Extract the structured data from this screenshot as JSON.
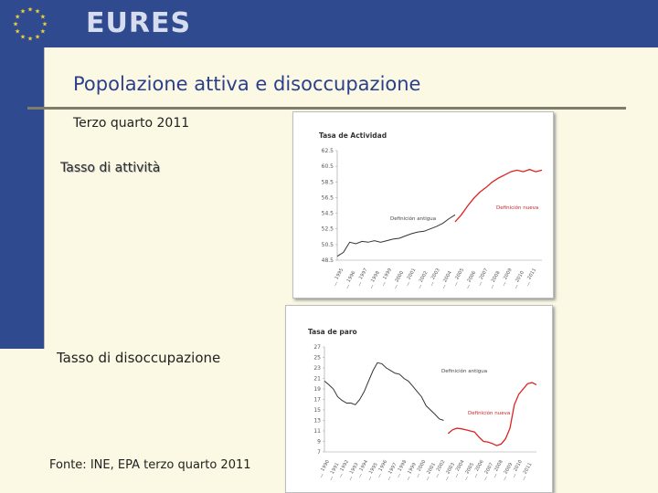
{
  "header": {
    "brand": "EURES",
    "flag_icon": "eu-flag-icon",
    "colors": {
      "bar": "#2f4a8f",
      "star": "#f2d43a",
      "title": "#2b3f8c"
    }
  },
  "slide": {
    "title": "Popolazione attiva e disoccupazione",
    "subtitle": "Terzo quarto 2011",
    "label_activity": "Tasso di attività",
    "label_unemployment": "Tasso di disoccupazione",
    "source": "Fonte: INE, EPA terzo quarto 2011"
  },
  "chart_data": [
    {
      "type": "line",
      "title": "Tasa de Actividad",
      "ylim": [
        48.5,
        62.5
      ],
      "yticks": [
        "62.5",
        "60.5",
        "58.5",
        "56.5",
        "54.5",
        "52.5",
        "50.5",
        "48.5"
      ],
      "x_labels": [
        "1995",
        "1996",
        "1997",
        "1998",
        "1999",
        "2000",
        "2001",
        "2002",
        "2003",
        "2004",
        "2005",
        "2006",
        "2007",
        "2008",
        "2009",
        "2010",
        "2011"
      ],
      "annotations": [
        "Definición antigua",
        "Definición nueva"
      ],
      "colors": {
        "old": "#333333",
        "new": "#dd2222"
      },
      "series": [
        {
          "definition": "old",
          "x": [
            1995.0,
            1995.5,
            1996.0,
            1996.5,
            1997.0,
            1997.5,
            1998.0,
            1998.5,
            1999.0,
            1999.5,
            2000.0,
            2000.5,
            2001.0,
            2001.5,
            2002.0,
            2002.5,
            2003.0,
            2003.5,
            2004.0,
            2004.5
          ],
          "values": [
            49.0,
            49.5,
            50.8,
            50.6,
            50.9,
            50.8,
            51.0,
            50.8,
            51.0,
            51.2,
            51.3,
            51.6,
            51.9,
            52.1,
            52.2,
            52.5,
            52.8,
            53.2,
            53.8,
            54.3
          ]
        },
        {
          "definition": "new",
          "x": [
            2004.5,
            2005.0,
            2005.5,
            2006.0,
            2006.5,
            2007.0,
            2007.5,
            2008.0,
            2008.5,
            2009.0,
            2009.5,
            2010.0,
            2010.5,
            2011.0,
            2011.5
          ],
          "values": [
            53.4,
            54.3,
            55.4,
            56.4,
            57.2,
            57.8,
            58.5,
            59.0,
            59.4,
            59.8,
            60.0,
            59.8,
            60.1,
            59.8,
            60.0
          ]
        }
      ]
    },
    {
      "type": "line",
      "title": "Tasa de paro",
      "ylim": [
        7,
        27
      ],
      "yticks": [
        "27",
        "25",
        "23",
        "21",
        "19",
        "17",
        "15",
        "13",
        "11",
        "9",
        "7"
      ],
      "x_labels": [
        "1990",
        "1991",
        "1992",
        "1993",
        "1994",
        "1995",
        "1996",
        "1997",
        "1998",
        "1999",
        "2000",
        "2001",
        "2002",
        "2003",
        "2004",
        "2005",
        "2006",
        "2007",
        "2008",
        "2009",
        "2010",
        "2011"
      ],
      "annotations": [
        "Definición antigua",
        "Definición nueva"
      ],
      "colors": {
        "old": "#333333",
        "new": "#dd2222"
      },
      "series": [
        {
          "definition": "old",
          "x": [
            1987.5,
            1988.0,
            1988.5,
            1989.0,
            1989.5,
            1990.0,
            1990.5,
            1991.0,
            1991.5,
            1992.0,
            1992.5,
            1993.0,
            1993.5,
            1994.0,
            1994.5,
            1995.0,
            1995.5,
            1996.0,
            1996.5,
            1997.0,
            1997.5,
            1998.0,
            1998.5,
            1999.0,
            1999.5,
            2000.0,
            2000.5,
            2001.0
          ],
          "values": [
            20.5,
            19.8,
            19.0,
            17.5,
            16.8,
            16.3,
            16.3,
            16.0,
            17.0,
            18.5,
            20.5,
            22.5,
            24.0,
            23.8,
            23.0,
            22.5,
            22.0,
            21.8,
            21.0,
            20.5,
            19.5,
            18.5,
            17.5,
            15.8,
            15.0,
            14.2,
            13.3,
            13.0
          ]
        },
        {
          "definition": "new",
          "x": [
            2001.5,
            2002.0,
            2002.5,
            2003.0,
            2003.5,
            2004.0,
            2004.5,
            2005.0,
            2005.5,
            2006.0,
            2006.5,
            2007.0,
            2007.5,
            2008.0,
            2008.5,
            2009.0,
            2009.5,
            2010.0,
            2010.5,
            2011.0,
            2011.5
          ],
          "values": [
            10.5,
            11.2,
            11.5,
            11.4,
            11.2,
            11.0,
            10.8,
            9.8,
            9.0,
            8.9,
            8.6,
            8.2,
            8.5,
            9.5,
            11.5,
            16.0,
            18.0,
            19.0,
            20.0,
            20.2,
            19.8
          ]
        }
      ]
    }
  ]
}
